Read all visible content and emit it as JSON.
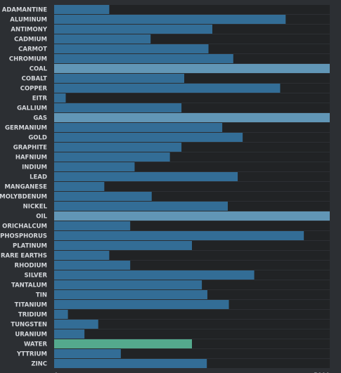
{
  "chart_data": {
    "type": "bar",
    "orientation": "horizontal",
    "categories": [
      "ADAMANTINE",
      "ALUMINUM",
      "ANTIMONY",
      "CADMIUM",
      "CARMOT",
      "CHROMIUM",
      "COAL",
      "COBALT",
      "COPPER",
      "EITR",
      "GALLIUM",
      "GAS",
      "GERMANIUM",
      "GOLD",
      "GRAPHITE",
      "HAFNIUM",
      "INDIUM",
      "LEAD",
      "MANGANESE",
      "MOLYBDENUM",
      "NICKEL",
      "OIL",
      "ORICHALCUM",
      "PHOSPHORUS",
      "PLATINUM",
      "RARE EARTHS",
      "RHODIUM",
      "SILVER",
      "TANTALUM",
      "TIN",
      "TITANIUM",
      "TRIDIUM",
      "TUNGSTEN",
      "URANIUM",
      "WATER",
      "YTTRIUM",
      "ZINC"
    ],
    "values": [
      1000,
      4200,
      2870,
      1750,
      2800,
      3250,
      5000,
      2360,
      4100,
      210,
      2310,
      5000,
      3050,
      3420,
      2310,
      2100,
      1460,
      3330,
      910,
      1770,
      3150,
      5000,
      1380,
      4530,
      2500,
      1000,
      1380,
      3630,
      2680,
      2780,
      3170,
      250,
      800,
      550,
      2500,
      1210,
      2770
    ],
    "highlighted": [
      "COAL",
      "GAS",
      "OIL",
      "WATER"
    ],
    "xlim": [
      0,
      5000
    ],
    "xticks": [
      "0",
      "5000"
    ],
    "colors": {
      "bar": "#336d96",
      "bar_full": "#6196b6",
      "bar_water": "#54a98d",
      "track": "#212325"
    },
    "grid": false,
    "legend": "none"
  }
}
